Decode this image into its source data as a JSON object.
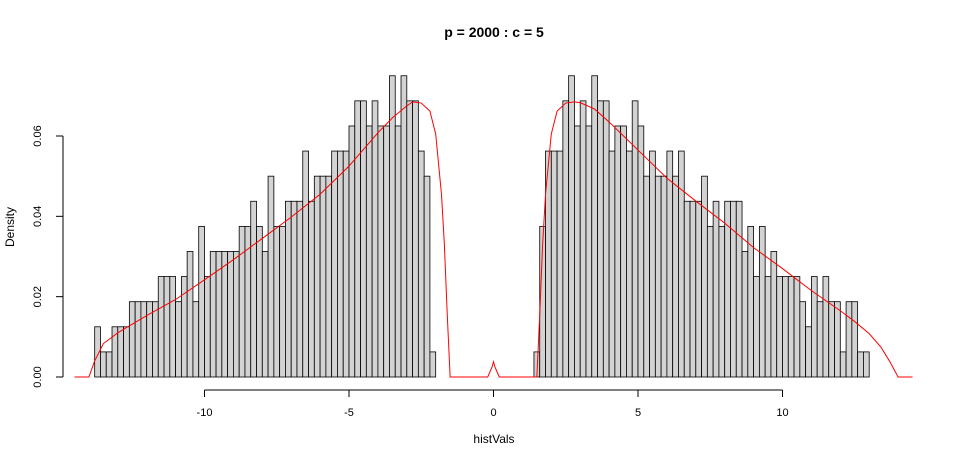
{
  "chart_data": {
    "type": "bar",
    "title": "p = 2000 : c = 5",
    "xlabel": "histVals",
    "ylabel": "Density",
    "xlim": [
      -14.6,
      14.6
    ],
    "ylim": [
      0,
      0.075
    ],
    "x_ticks": [
      -10,
      -5,
      0,
      5,
      10
    ],
    "x_tick_labels": [
      "-10",
      "-5",
      "0",
      "5",
      "10"
    ],
    "y_ticks": [
      0.0,
      0.02,
      0.04,
      0.06
    ],
    "y_tick_labels": [
      "0.00",
      "0.02",
      "0.04",
      "0.06"
    ],
    "grid": false,
    "bin_width": 0.2,
    "series": [
      {
        "x_start": -13.8,
        "values": [
          0.0125,
          0.00625,
          0.00625,
          0.0125,
          0.0125,
          0.0125,
          0.01875,
          0.01875,
          0.01875,
          0.01875,
          0.01875,
          0.025,
          0.025,
          0.025,
          0.01875,
          0.025,
          0.03125,
          0.01875,
          0.0375,
          0.025,
          0.03125,
          0.03125,
          0.03125,
          0.03125,
          0.03125,
          0.0375,
          0.0375,
          0.04375,
          0.0375,
          0.03125,
          0.05,
          0.0375,
          0.0375,
          0.04375,
          0.04375,
          0.04375,
          0.05625,
          0.04375,
          0.05,
          0.05,
          0.05,
          0.05625,
          0.05625,
          0.05625,
          0.0625,
          0.06875,
          0.06875,
          0.0625,
          0.06875,
          0.0625,
          0.0625,
          0.075,
          0.0625,
          0.075,
          0.06875,
          0.06875,
          0.05625,
          0.05,
          0.00625
        ]
      },
      {
        "x_start": 1.4,
        "values": [
          0.00625,
          0.0375,
          0.05625,
          0.05625,
          0.05625,
          0.06875,
          0.075,
          0.0625,
          0.06875,
          0.0625,
          0.075,
          0.06875,
          0.06875,
          0.05625,
          0.0625,
          0.0625,
          0.05625,
          0.06875,
          0.0625,
          0.05,
          0.05625,
          0.05,
          0.05,
          0.05625,
          0.05,
          0.05625,
          0.04375,
          0.04375,
          0.04375,
          0.05,
          0.0375,
          0.04375,
          0.0375,
          0.04375,
          0.04375,
          0.04375,
          0.03125,
          0.0375,
          0.025,
          0.0375,
          0.025,
          0.03125,
          0.025,
          0.025,
          0.025,
          0.025,
          0.01875,
          0.0125,
          0.025,
          0.01875,
          0.025,
          0.01875,
          0.01875,
          0.00625,
          0.01875,
          0.01875,
          0.00625,
          0.00625
        ]
      }
    ],
    "density_curve": {
      "color": "#ff0000",
      "points": [
        [
          -14.5,
          0.0
        ],
        [
          -14.0,
          0.0
        ],
        [
          -13.8,
          0.004
        ],
        [
          -13.5,
          0.0083
        ],
        [
          -13.0,
          0.011
        ],
        [
          -12.0,
          0.0153
        ],
        [
          -11.0,
          0.0193
        ],
        [
          -10.0,
          0.0242
        ],
        [
          -9.0,
          0.0292
        ],
        [
          -8.0,
          0.0345
        ],
        [
          -7.0,
          0.0398
        ],
        [
          -6.0,
          0.0455
        ],
        [
          -5.0,
          0.0525
        ],
        [
          -4.0,
          0.0608
        ],
        [
          -3.5,
          0.0645
        ],
        [
          -3.0,
          0.0675
        ],
        [
          -2.8,
          0.0685
        ],
        [
          -2.5,
          0.0682
        ],
        [
          -2.2,
          0.0662
        ],
        [
          -2.0,
          0.0605
        ],
        [
          -1.8,
          0.0455
        ],
        [
          -1.7,
          0.033
        ],
        [
          -1.6,
          0.0155
        ],
        [
          -1.5,
          0.0
        ],
        [
          -0.2,
          0.0
        ],
        [
          -0.05,
          0.0025
        ],
        [
          0.0,
          0.0038
        ],
        [
          0.05,
          0.0025
        ],
        [
          0.2,
          0.0
        ],
        [
          1.5,
          0.0
        ],
        [
          1.6,
          0.0155
        ],
        [
          1.7,
          0.033
        ],
        [
          1.8,
          0.0455
        ],
        [
          2.0,
          0.0605
        ],
        [
          2.2,
          0.0662
        ],
        [
          2.5,
          0.0682
        ],
        [
          2.8,
          0.0685
        ],
        [
          3.0,
          0.0683
        ],
        [
          3.5,
          0.0667
        ],
        [
          4.0,
          0.0635
        ],
        [
          5.0,
          0.0565
        ],
        [
          6.0,
          0.0495
        ],
        [
          7.0,
          0.0438
        ],
        [
          8.0,
          0.0383
        ],
        [
          9.0,
          0.0322
        ],
        [
          10.0,
          0.027
        ],
        [
          11.0,
          0.0215
        ],
        [
          12.0,
          0.0165
        ],
        [
          12.5,
          0.0138
        ],
        [
          13.0,
          0.0108
        ],
        [
          13.4,
          0.0075
        ],
        [
          13.7,
          0.004
        ],
        [
          14.0,
          0.0
        ],
        [
          14.5,
          0.0
        ]
      ]
    }
  }
}
